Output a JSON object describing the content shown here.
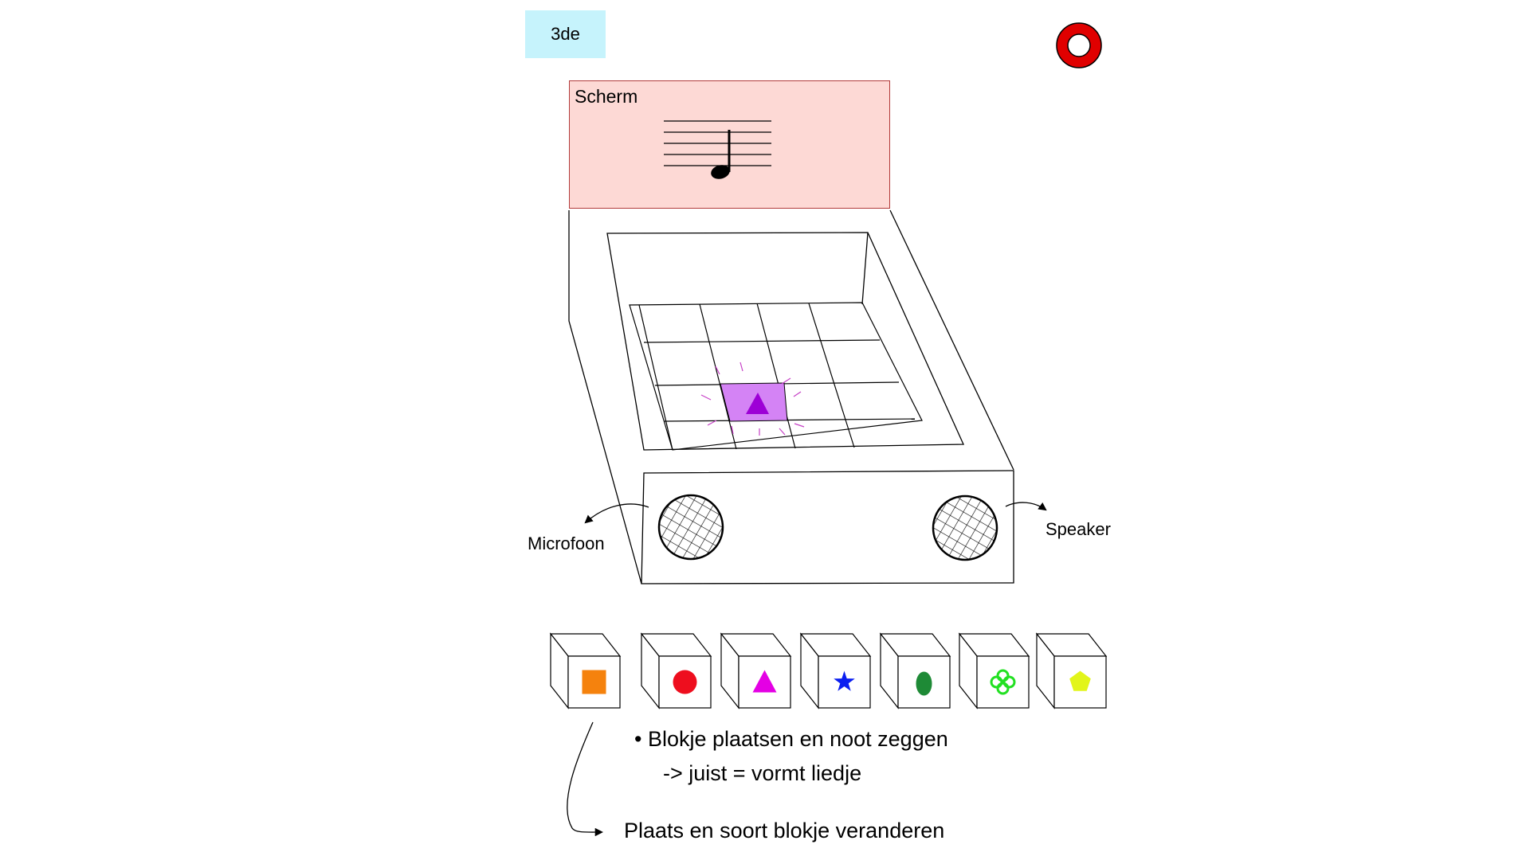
{
  "badge": {
    "label": "3de"
  },
  "screen": {
    "label": "Scherm"
  },
  "labels": {
    "microphone": "Microfoon",
    "speaker": "Speaker"
  },
  "notes": {
    "bullet": "• Blokje plaatsen en noot zeggen",
    "result": "-> juist = vormt liedje",
    "bottom": "Plaats en soort blokje veranderen"
  },
  "blocks": [
    {
      "shape": "square",
      "color": "#f5820d"
    },
    {
      "shape": "circle",
      "color": "#ee0e1e"
    },
    {
      "shape": "triangle",
      "color": "#e400e4"
    },
    {
      "shape": "star",
      "color": "#0a1ef0"
    },
    {
      "shape": "ellipse",
      "color": "#1e8a36"
    },
    {
      "shape": "clover",
      "color": "#22e022"
    },
    {
      "shape": "pentagon",
      "color": "#e2f51a"
    }
  ],
  "grid": {
    "highlight_color": "#d483f5",
    "triangle_color": "#9d00d6"
  },
  "icons": {
    "record": "record-ring-icon",
    "note": "quarter-note-icon"
  },
  "colors": {
    "badge_bg": "#c6f3fc",
    "screen_bg": "#fdd9d5",
    "screen_border": "#b23a3a",
    "record_ring": "#e00000"
  }
}
